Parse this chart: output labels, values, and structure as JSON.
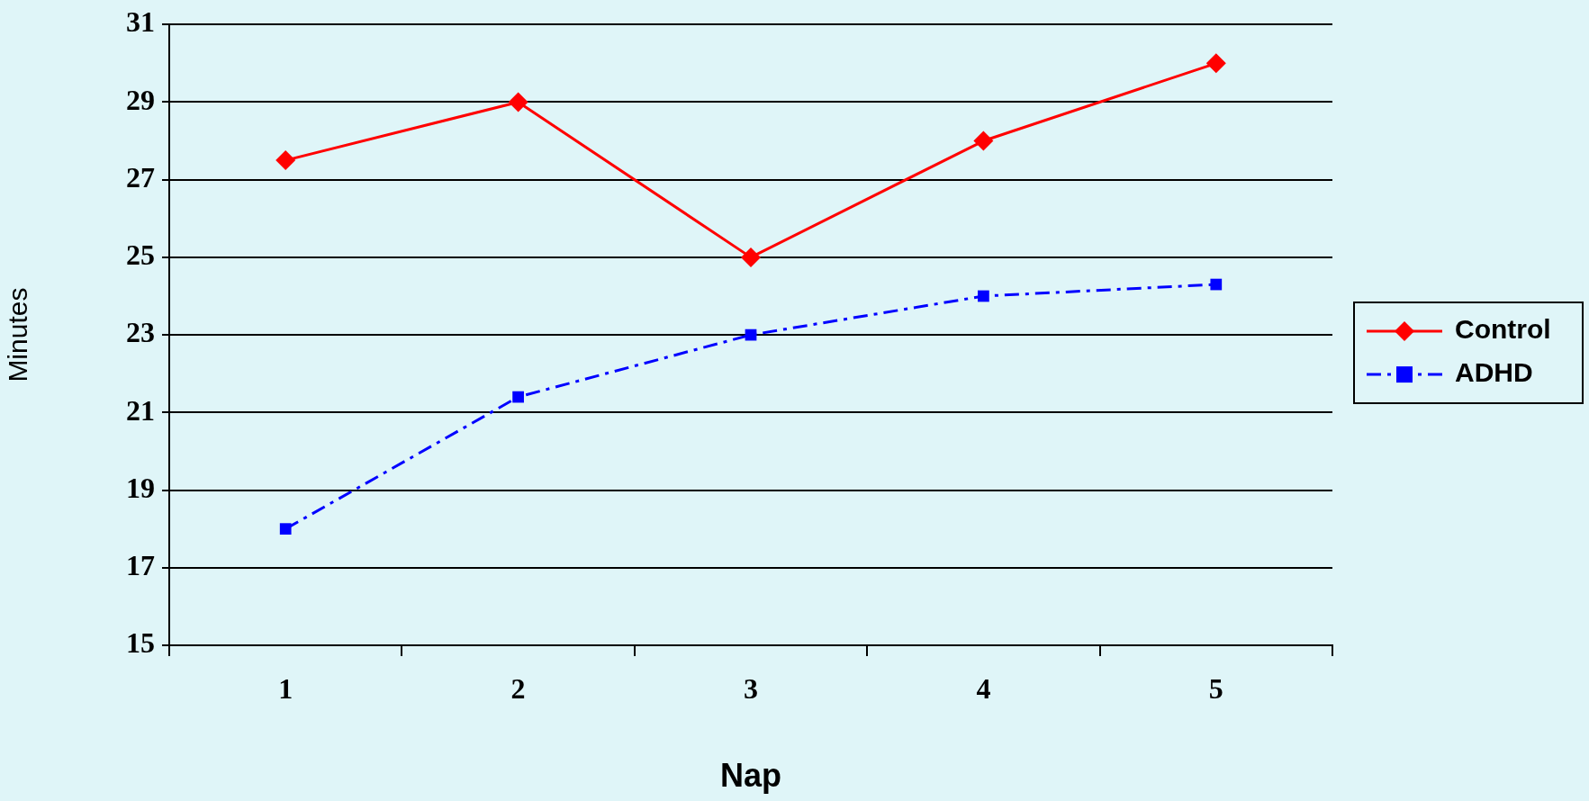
{
  "chart_data": {
    "type": "line",
    "xlabel": "Nap",
    "ylabel": "Minutes",
    "categories": [
      "1",
      "2",
      "3",
      "4",
      "5"
    ],
    "series": [
      {
        "name": "Control",
        "color": "#ff0000",
        "values": [
          27.5,
          29,
          25,
          28,
          30
        ],
        "marker": "diamond",
        "line_style": "solid"
      },
      {
        "name": "ADHD",
        "color": "#0000ff",
        "values": [
          18,
          21.4,
          23,
          24,
          24.3
        ],
        "marker": "square",
        "line_style": "dashdot"
      }
    ],
    "ylim": [
      15,
      31
    ],
    "yticks": [
      15,
      17,
      19,
      21,
      23,
      25,
      27,
      29,
      31
    ],
    "grid": "y",
    "legend": "right"
  }
}
